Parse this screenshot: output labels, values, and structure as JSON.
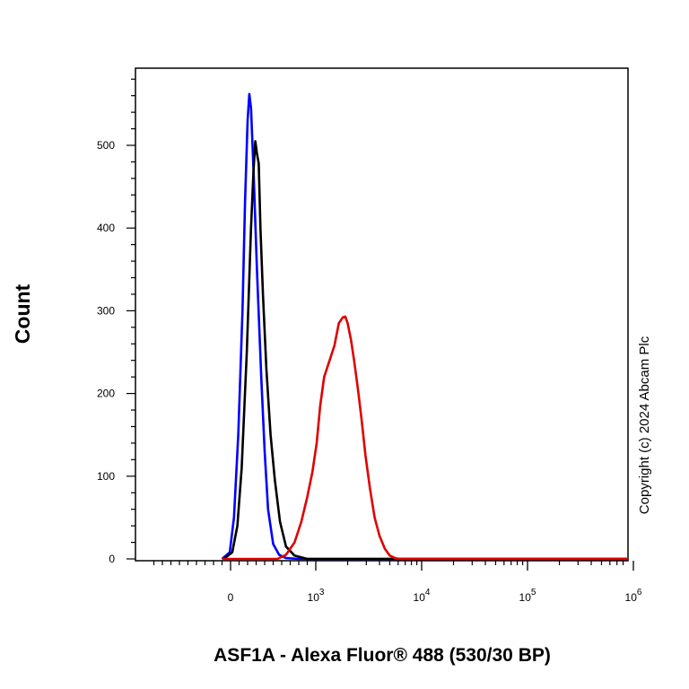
{
  "chart_data": {
    "type": "line",
    "title": "",
    "xlabel": "ASF1A - Alexa Fluor® 488 (530/30 BP)",
    "ylabel": "Count",
    "ylim": [
      0,
      590
    ],
    "x_scale": "biexponential",
    "x_ticks": [
      {
        "value": 0,
        "base": "0",
        "exp": ""
      },
      {
        "value": 1000,
        "base": "10",
        "exp": "3"
      },
      {
        "value": 10000,
        "base": "10",
        "exp": "4"
      },
      {
        "value": 100000,
        "base": "10",
        "exp": "5"
      },
      {
        "value": 1000000,
        "base": "10",
        "exp": "6"
      }
    ],
    "y_ticks": [
      0,
      100,
      200,
      300,
      400,
      500
    ],
    "grid": false,
    "legend": "none",
    "copyright": "Copyright (c) 2024 Abcam Plc",
    "series": [
      {
        "color": "#0000ff",
        "x": [
          -100,
          -10,
          40,
          90,
          140,
          170,
          200,
          220,
          240,
          270,
          310,
          360,
          400,
          440,
          500,
          570,
          650,
          800,
          1000000
        ],
        "y": [
          0,
          8,
          50,
          150,
          300,
          430,
          530,
          562,
          545,
          470,
          350,
          220,
          130,
          60,
          18,
          5,
          1,
          0,
          0
        ]
      },
      {
        "color": "#000000",
        "x": [
          -80,
          20,
          80,
          130,
          190,
          240,
          270,
          290,
          310,
          330,
          350,
          380,
          420,
          470,
          520,
          580,
          650,
          750,
          900,
          1000000
        ],
        "y": [
          0,
          8,
          40,
          110,
          250,
          400,
          470,
          505,
          490,
          478,
          400,
          320,
          230,
          150,
          95,
          45,
          15,
          4,
          0,
          0
        ]
      },
      {
        "color": "#e00000",
        "x": [
          -100,
          550,
          650,
          750,
          830,
          900,
          960,
          1020,
          1100,
          1200,
          1350,
          1500,
          1650,
          1800,
          1900,
          2000,
          2150,
          2300,
          2500,
          2700,
          2950,
          3250,
          3600,
          4000,
          4500,
          5000,
          5600,
          6200,
          1000000
        ],
        "y": [
          0,
          0,
          5,
          20,
          45,
          75,
          105,
          140,
          185,
          220,
          240,
          258,
          285,
          292,
          293,
          285,
          265,
          240,
          205,
          170,
          125,
          85,
          50,
          28,
          12,
          4,
          1,
          0,
          0
        ]
      }
    ]
  }
}
